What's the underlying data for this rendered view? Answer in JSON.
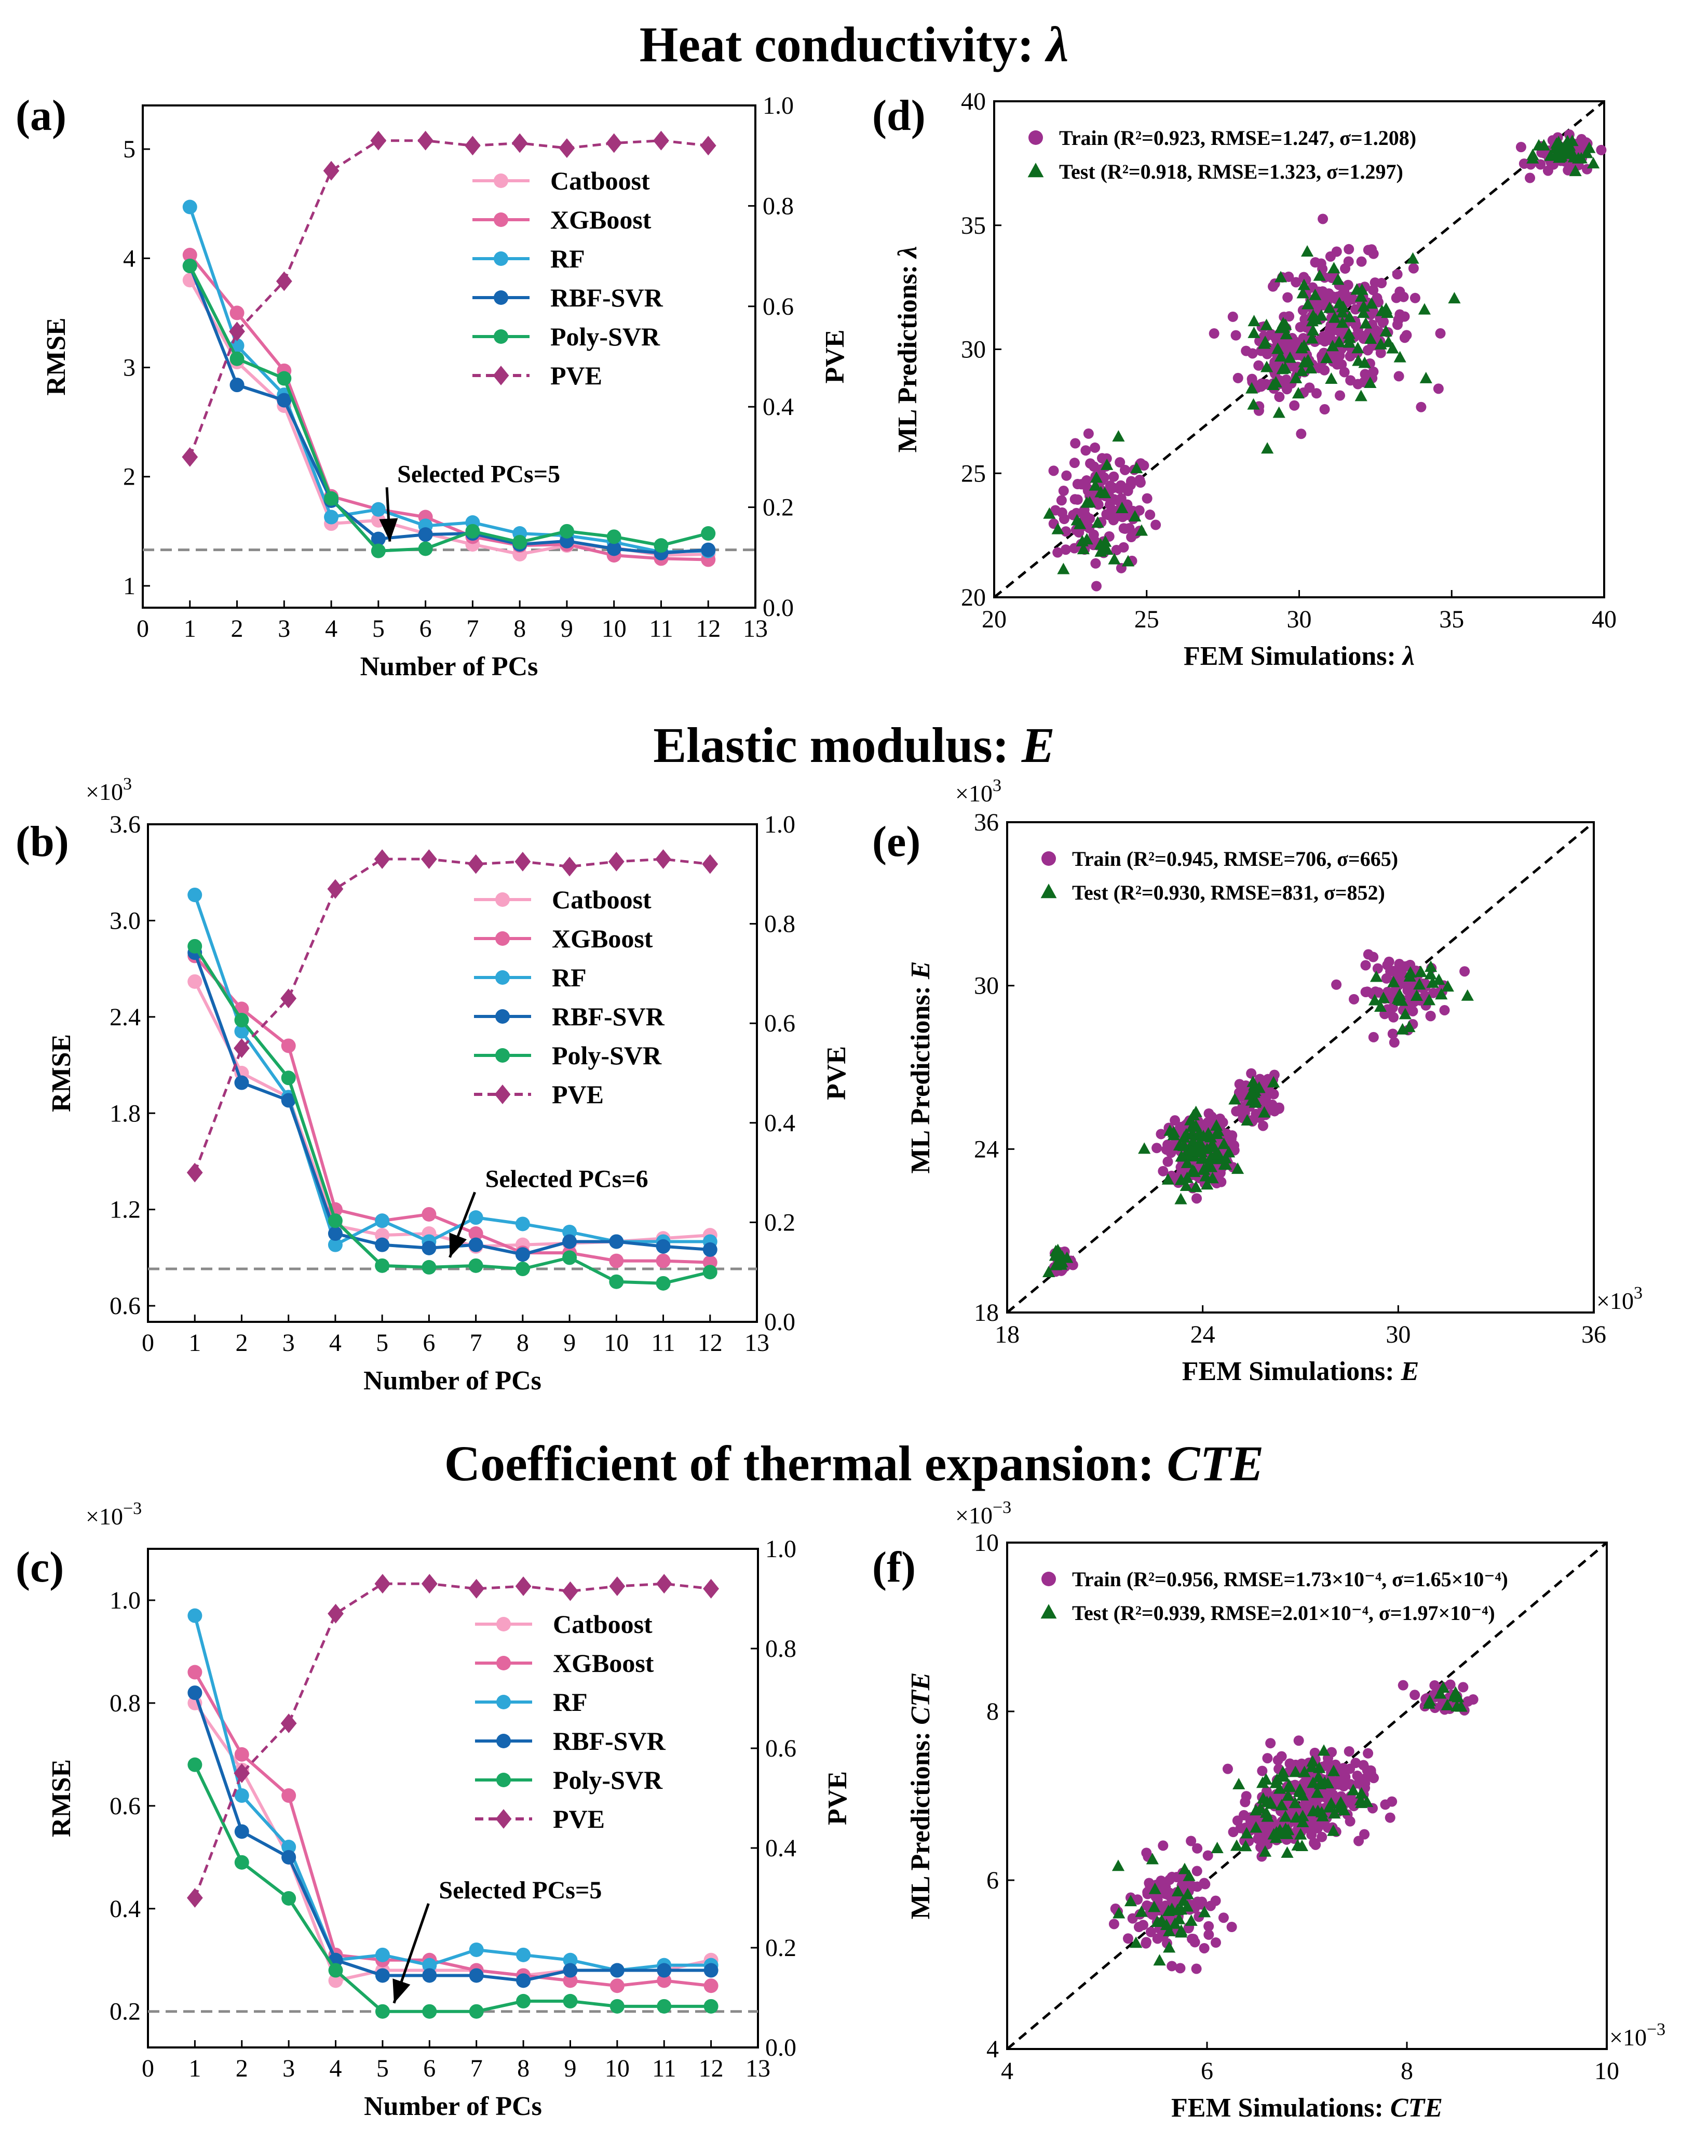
{
  "figure": {
    "titles": [
      {
        "text": "Heat conductivity: ",
        "sym": "λ"
      },
      {
        "text": "Elastic modulus: ",
        "sym": "E"
      },
      {
        "text": "Coefficient of thermal expansion: ",
        "sym": "CTE"
      }
    ]
  },
  "colors": {
    "catboost": "#f7a1c4",
    "xgboost": "#e3669e",
    "rf": "#2ea7d8",
    "rbf_svr": "#1565b0",
    "poly_svr": "#1aa862",
    "pve": "#a3357c",
    "train": "#9c2f8e",
    "test": "#0d6b1e",
    "hline": "#8a8a8a"
  },
  "chart_data": [
    {
      "panel": "(a)",
      "type": "line",
      "xlabel": "Number of PCs",
      "ylabel": "RMSE",
      "y2label": "PVE",
      "multiplier": "",
      "xlim": [
        0,
        13
      ],
      "xticks": [
        "0",
        "1",
        "2",
        "3",
        "4",
        "5",
        "6",
        "7",
        "8",
        "9",
        "10",
        "11",
        "12",
        "13"
      ],
      "ylim": [
        0.8,
        5.4
      ],
      "yticks": [
        {
          "v": 1,
          "t": "1"
        },
        {
          "v": 2,
          "t": "2"
        },
        {
          "v": 3,
          "t": "3"
        },
        {
          "v": 4,
          "t": "4"
        },
        {
          "v": 5,
          "t": "5"
        }
      ],
      "y2lim": [
        0,
        1.0
      ],
      "y2ticks": [
        {
          "v": 0,
          "t": "0.0"
        },
        {
          "v": 0.2,
          "t": "0.2"
        },
        {
          "v": 0.4,
          "t": "0.4"
        },
        {
          "v": 0.6,
          "t": "0.6"
        },
        {
          "v": 0.8,
          "t": "0.8"
        },
        {
          "v": 1.0,
          "t": "1.0"
        }
      ],
      "x": [
        1,
        2,
        3,
        4,
        5,
        6,
        7,
        8,
        9,
        10,
        11,
        12
      ],
      "series": [
        {
          "name": "Catboost",
          "key": "catboost",
          "values": [
            3.8,
            3.05,
            2.65,
            1.57,
            1.6,
            1.48,
            1.38,
            1.29,
            1.37,
            1.35,
            1.28,
            1.29
          ]
        },
        {
          "name": "XGBoost",
          "key": "xgboost",
          "values": [
            4.03,
            3.5,
            2.97,
            1.82,
            1.7,
            1.63,
            1.45,
            1.37,
            1.38,
            1.28,
            1.25,
            1.24
          ]
        },
        {
          "name": "RF",
          "key": "rf",
          "values": [
            4.47,
            3.2,
            2.75,
            1.63,
            1.7,
            1.55,
            1.58,
            1.48,
            1.46,
            1.4,
            1.31,
            1.32
          ]
        },
        {
          "name": "RBF-SVR",
          "key": "rbf_svr",
          "values": [
            3.93,
            2.84,
            2.7,
            1.78,
            1.43,
            1.47,
            1.48,
            1.38,
            1.41,
            1.34,
            1.3,
            1.33
          ]
        },
        {
          "name": "Poly-SVR",
          "key": "poly_svr",
          "values": [
            3.93,
            3.08,
            2.9,
            1.8,
            1.32,
            1.34,
            1.5,
            1.4,
            1.5,
            1.45,
            1.37,
            1.48
          ]
        }
      ],
      "pve": {
        "name": "PVE",
        "values": [
          0.3,
          0.55,
          0.65,
          0.87,
          0.93,
          0.93,
          0.92,
          0.925,
          0.915,
          0.925,
          0.93,
          0.92
        ]
      },
      "hline": 1.33,
      "annotation": {
        "text": "Selected PCs=5",
        "target_x": 5,
        "target_y": 1.33,
        "text_x": 5.4,
        "text_y": 1.95
      }
    },
    {
      "panel": "(b)",
      "type": "line",
      "xlabel": "Number of PCs",
      "ylabel": "RMSE",
      "y2label": "PVE",
      "multiplier": "×10",
      "multiplier_exp": "3",
      "xlim": [
        0,
        13
      ],
      "xticks": [
        "0",
        "1",
        "2",
        "3",
        "4",
        "5",
        "6",
        "7",
        "8",
        "9",
        "10",
        "11",
        "12",
        "13"
      ],
      "ylim": [
        0.5,
        3.6
      ],
      "yticks": [
        {
          "v": 0.6,
          "t": "0.6"
        },
        {
          "v": 1.2,
          "t": "1.2"
        },
        {
          "v": 1.8,
          "t": "1.8"
        },
        {
          "v": 2.4,
          "t": "2.4"
        },
        {
          "v": 3.0,
          "t": "3.0"
        },
        {
          "v": 3.6,
          "t": "3.6"
        }
      ],
      "y2lim": [
        0,
        1.0
      ],
      "y2ticks": [
        {
          "v": 0,
          "t": "0.0"
        },
        {
          "v": 0.2,
          "t": "0.2"
        },
        {
          "v": 0.4,
          "t": "0.4"
        },
        {
          "v": 0.6,
          "t": "0.6"
        },
        {
          "v": 0.8,
          "t": "0.8"
        },
        {
          "v": 1.0,
          "t": "1.0"
        }
      ],
      "x": [
        1,
        2,
        3,
        4,
        5,
        6,
        7,
        8,
        9,
        10,
        11,
        12
      ],
      "series": [
        {
          "name": "Catboost",
          "key": "catboost",
          "values": [
            2.62,
            2.05,
            1.9,
            1.1,
            1.04,
            1.05,
            0.97,
            0.98,
            0.99,
            1.0,
            1.02,
            1.04
          ]
        },
        {
          "name": "XGBoost",
          "key": "xgboost",
          "values": [
            2.78,
            2.45,
            2.22,
            1.2,
            1.13,
            1.17,
            1.05,
            0.93,
            0.93,
            0.88,
            0.88,
            0.87
          ]
        },
        {
          "name": "RF",
          "key": "rf",
          "values": [
            3.16,
            2.31,
            1.9,
            0.98,
            1.13,
            1.0,
            1.15,
            1.11,
            1.06,
            1.0,
            1.0,
            1.0
          ]
        },
        {
          "name": "RBF-SVR",
          "key": "rbf_svr",
          "values": [
            2.8,
            1.99,
            1.88,
            1.05,
            0.98,
            0.96,
            0.98,
            0.92,
            1.0,
            1.0,
            0.97,
            0.95
          ]
        },
        {
          "name": "Poly-SVR",
          "key": "poly_svr",
          "values": [
            2.84,
            2.38,
            2.02,
            1.13,
            0.85,
            0.84,
            0.85,
            0.83,
            0.9,
            0.75,
            0.74,
            0.81
          ]
        }
      ],
      "pve": {
        "name": "PVE",
        "values": [
          0.3,
          0.55,
          0.65,
          0.87,
          0.93,
          0.93,
          0.92,
          0.925,
          0.915,
          0.925,
          0.93,
          0.92
        ]
      },
      "hline": 0.83,
      "annotation": {
        "text": "Selected PCs=6",
        "target_x": 6.2,
        "target_y": 0.85,
        "text_x": 7.2,
        "text_y": 1.34
      }
    },
    {
      "panel": "(c)",
      "type": "line",
      "xlabel": "Number of PCs",
      "ylabel": "RMSE",
      "y2label": "PVE",
      "multiplier": "×10",
      "multiplier_exp": "−3",
      "xlim": [
        0,
        13
      ],
      "xticks": [
        "0",
        "1",
        "2",
        "3",
        "4",
        "5",
        "6",
        "7",
        "8",
        "9",
        "10",
        "11",
        "12",
        "13"
      ],
      "ylim": [
        0.13,
        1.1
      ],
      "yticks": [
        {
          "v": 0.2,
          "t": "0.2"
        },
        {
          "v": 0.4,
          "t": "0.4"
        },
        {
          "v": 0.6,
          "t": "0.6"
        },
        {
          "v": 0.8,
          "t": "0.8"
        },
        {
          "v": 1.0,
          "t": "1.0"
        }
      ],
      "y2lim": [
        0,
        1.0
      ],
      "y2ticks": [
        {
          "v": 0,
          "t": "0.0"
        },
        {
          "v": 0.2,
          "t": "0.2"
        },
        {
          "v": 0.4,
          "t": "0.4"
        },
        {
          "v": 0.6,
          "t": "0.6"
        },
        {
          "v": 0.8,
          "t": "0.8"
        },
        {
          "v": 1.0,
          "t": "1.0"
        }
      ],
      "x": [
        1,
        2,
        3,
        4,
        5,
        6,
        7,
        8,
        9,
        10,
        11,
        12
      ],
      "series": [
        {
          "name": "Catboost",
          "key": "catboost",
          "values": [
            0.8,
            0.67,
            0.5,
            0.26,
            0.28,
            0.28,
            0.28,
            0.27,
            0.28,
            0.28,
            0.28,
            0.3
          ]
        },
        {
          "name": "XGBoost",
          "key": "xgboost",
          "values": [
            0.86,
            0.7,
            0.62,
            0.31,
            0.3,
            0.3,
            0.28,
            0.27,
            0.26,
            0.25,
            0.26,
            0.25
          ]
        },
        {
          "name": "RF",
          "key": "rf",
          "values": [
            0.97,
            0.62,
            0.52,
            0.3,
            0.31,
            0.29,
            0.32,
            0.31,
            0.3,
            0.28,
            0.29,
            0.29
          ]
        },
        {
          "name": "RBF-SVR",
          "key": "rbf_svr",
          "values": [
            0.82,
            0.55,
            0.5,
            0.3,
            0.27,
            0.27,
            0.27,
            0.26,
            0.28,
            0.28,
            0.28,
            0.28
          ]
        },
        {
          "name": "Poly-SVR",
          "key": "poly_svr",
          "values": [
            0.68,
            0.49,
            0.42,
            0.28,
            0.2,
            0.2,
            0.2,
            0.22,
            0.22,
            0.21,
            0.21,
            0.21
          ]
        }
      ],
      "pve": {
        "name": "PVE",
        "values": [
          0.3,
          0.55,
          0.65,
          0.87,
          0.93,
          0.93,
          0.92,
          0.925,
          0.915,
          0.925,
          0.93,
          0.92
        ]
      },
      "hline": 0.2,
      "annotation": {
        "text": "Selected PCs=5",
        "target_x": 5,
        "target_y": 0.2,
        "text_x": 6.2,
        "text_y": 0.42
      }
    },
    {
      "panel": "(d)",
      "type": "scatter",
      "xlabel": "FEM Simulations: ",
      "xsym": "λ",
      "ylabel": "ML Predictions: ",
      "ysym": "λ",
      "xlim": [
        20,
        40
      ],
      "ylim": [
        20,
        40
      ],
      "xticks": [
        {
          "v": 20,
          "t": "20"
        },
        {
          "v": 25,
          "t": "25"
        },
        {
          "v": 30,
          "t": "30"
        },
        {
          "v": 35,
          "t": "35"
        },
        {
          "v": 40,
          "t": "40"
        }
      ],
      "yticks": [
        {
          "v": 20,
          "t": "20"
        },
        {
          "v": 25,
          "t": "25"
        },
        {
          "v": 30,
          "t": "30"
        },
        {
          "v": 35,
          "t": "35"
        },
        {
          "v": 40,
          "t": "40"
        }
      ],
      "multiplier_x": "",
      "multiplier_y": "",
      "legend": [
        {
          "marker": "circle",
          "text": "Train (R²=0.923, RMSE=1.247, σ=1.208)"
        },
        {
          "marker": "triangle",
          "text": "Test   (R²=0.918, RMSE=1.323, σ=1.297)"
        }
      ],
      "clusters": [
        {
          "cx": 23.6,
          "cy": 23.6,
          "sx": 0.8,
          "sy": 1.2,
          "n_train": 120,
          "n_test": 28
        },
        {
          "cx": 29.3,
          "cy": 29.6,
          "sx": 0.6,
          "sy": 0.9,
          "n_train": 70,
          "n_test": 25
        },
        {
          "cx": 31.3,
          "cy": 31.0,
          "sx": 1.2,
          "sy": 1.3,
          "n_train": 220,
          "n_test": 60
        },
        {
          "cx": 38.7,
          "cy": 37.8,
          "sx": 0.5,
          "sy": 0.35,
          "n_train": 60,
          "n_test": 30
        }
      ]
    },
    {
      "panel": "(e)",
      "type": "scatter",
      "xlabel": "FEM Simulations: ",
      "xsym": "E",
      "ylabel": "ML Predictions: ",
      "ysym": "E",
      "xlim": [
        18,
        36
      ],
      "ylim": [
        18,
        36
      ],
      "xticks": [
        {
          "v": 18,
          "t": "18"
        },
        {
          "v": 24,
          "t": "24"
        },
        {
          "v": 30,
          "t": "30"
        },
        {
          "v": 36,
          "t": "36"
        }
      ],
      "yticks": [
        {
          "v": 18,
          "t": "18"
        },
        {
          "v": 24,
          "t": "24"
        },
        {
          "v": 30,
          "t": "30"
        },
        {
          "v": 36,
          "t": "36"
        }
      ],
      "multiplier_x": "×10",
      "multiplier_x_exp": "3",
      "multiplier_y": "×10",
      "multiplier_y_exp": "3",
      "legend": [
        {
          "marker": "circle",
          "text": "Train (R²=0.945, RMSE=706, σ=665)"
        },
        {
          "marker": "triangle",
          "text": "Test   (R²=0.930, RMSE=831, σ=852)"
        }
      ],
      "clusters": [
        {
          "cx": 19.7,
          "cy": 19.9,
          "sx": 0.15,
          "sy": 0.25,
          "n_train": 40,
          "n_test": 10
        },
        {
          "cx": 23.9,
          "cy": 23.9,
          "sx": 0.45,
          "sy": 0.6,
          "n_train": 260,
          "n_test": 70
        },
        {
          "cx": 25.7,
          "cy": 25.9,
          "sx": 0.3,
          "sy": 0.4,
          "n_train": 60,
          "n_test": 15
        },
        {
          "cx": 30.2,
          "cy": 29.8,
          "sx": 0.7,
          "sy": 0.6,
          "n_train": 90,
          "n_test": 25
        }
      ]
    },
    {
      "panel": "(f)",
      "type": "scatter",
      "xlabel": "FEM Simulations: ",
      "xsym": "CTE",
      "ylabel": "ML Predictions: ",
      "ysym": "CTE",
      "xlim": [
        4,
        10
      ],
      "ylim": [
        4,
        10
      ],
      "xticks": [
        {
          "v": 4,
          "t": "4"
        },
        {
          "v": 6,
          "t": "6"
        },
        {
          "v": 8,
          "t": "8"
        },
        {
          "v": 10,
          "t": "10"
        }
      ],
      "yticks": [
        {
          "v": 4,
          "t": "4"
        },
        {
          "v": 6,
          "t": "6"
        },
        {
          "v": 8,
          "t": "8"
        },
        {
          "v": 10,
          "t": "10"
        }
      ],
      "multiplier_x": "×10",
      "multiplier_x_exp": "−3",
      "multiplier_y": "×10",
      "multiplier_y_exp": "−3",
      "legend": [
        {
          "marker": "circle",
          "text": "Train (R²=0.956, RMSE=1.73×10⁻⁴, σ=1.65×10⁻⁴)"
        },
        {
          "marker": "triangle",
          "text": "Test   (R²=0.939, RMSE=2.01×10⁻⁴, σ=1.97×10⁻⁴)"
        }
      ],
      "clusters": [
        {
          "cx": 5.65,
          "cy": 5.65,
          "sx": 0.22,
          "sy": 0.28,
          "n_train": 120,
          "n_test": 30
        },
        {
          "cx": 6.6,
          "cy": 6.6,
          "sx": 0.15,
          "sy": 0.15,
          "n_train": 60,
          "n_test": 20
        },
        {
          "cx": 7.05,
          "cy": 7.0,
          "sx": 0.28,
          "sy": 0.25,
          "n_train": 200,
          "n_test": 55
        },
        {
          "cx": 8.35,
          "cy": 8.15,
          "sx": 0.15,
          "sy": 0.1,
          "n_train": 30,
          "n_test": 10
        }
      ]
    }
  ]
}
